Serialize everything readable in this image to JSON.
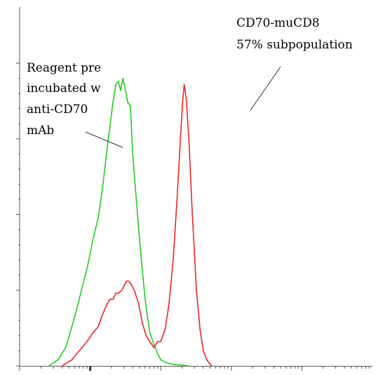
{
  "chart_data": {
    "type": "line",
    "x_scale": "log",
    "xlim": [
      1,
      100000
    ],
    "ylim": [
      0,
      100
    ],
    "grid": false,
    "series": [
      {
        "name": "",
        "color": "#22cc22",
        "points": [
          [
            2.6,
            0
          ],
          [
            3.5,
            2
          ],
          [
            4.5,
            6
          ],
          [
            5.5,
            13
          ],
          [
            6.5,
            19
          ],
          [
            7.5,
            25
          ],
          [
            9,
            32
          ],
          [
            11,
            42
          ],
          [
            13,
            49
          ],
          [
            15,
            59
          ],
          [
            17,
            70
          ],
          [
            19,
            79
          ],
          [
            21,
            87
          ],
          [
            23,
            93
          ],
          [
            25,
            94
          ],
          [
            27,
            91
          ],
          [
            29,
            95
          ],
          [
            31,
            92
          ],
          [
            34,
            87
          ],
          [
            37,
            86
          ],
          [
            40,
            70
          ],
          [
            45,
            55
          ],
          [
            52,
            37
          ],
          [
            60,
            22
          ],
          [
            70,
            11
          ],
          [
            80,
            7
          ],
          [
            90,
            4
          ],
          [
            100,
            2
          ],
          [
            120,
            1
          ],
          [
            150,
            0.5
          ],
          [
            250,
            0
          ]
        ]
      },
      {
        "name": "",
        "color": "#ee2222",
        "points": [
          [
            4,
            0
          ],
          [
            5.5,
            2
          ],
          [
            7,
            5
          ],
          [
            9,
            8
          ],
          [
            11,
            11
          ],
          [
            13,
            13
          ],
          [
            15,
            17
          ],
          [
            17,
            20
          ],
          [
            19,
            22
          ],
          [
            21,
            22
          ],
          [
            23,
            24
          ],
          [
            25,
            24
          ],
          [
            28,
            25
          ],
          [
            31,
            27
          ],
          [
            33,
            28
          ],
          [
            35,
            28
          ],
          [
            38,
            27
          ],
          [
            42,
            25
          ],
          [
            48,
            21
          ],
          [
            55,
            14
          ],
          [
            62,
            10
          ],
          [
            70,
            8
          ],
          [
            80,
            6
          ],
          [
            90,
            8
          ],
          [
            100,
            8
          ],
          [
            115,
            12
          ],
          [
            130,
            20
          ],
          [
            150,
            35
          ],
          [
            170,
            55
          ],
          [
            190,
            75
          ],
          [
            205,
            88
          ],
          [
            215,
            93
          ],
          [
            230,
            88
          ],
          [
            250,
            75
          ],
          [
            280,
            50
          ],
          [
            320,
            25
          ],
          [
            360,
            12
          ],
          [
            400,
            5
          ],
          [
            450,
            2
          ],
          [
            520,
            0
          ]
        ]
      }
    ],
    "annotations": [
      {
        "id": "green",
        "lines": [
          "Reagent pre",
          "incubated w",
          "anti-CD70",
          "mAb"
        ]
      },
      {
        "id": "red",
        "lines": [
          "CD70-muCD8",
          "57% subpopulation"
        ]
      }
    ]
  }
}
